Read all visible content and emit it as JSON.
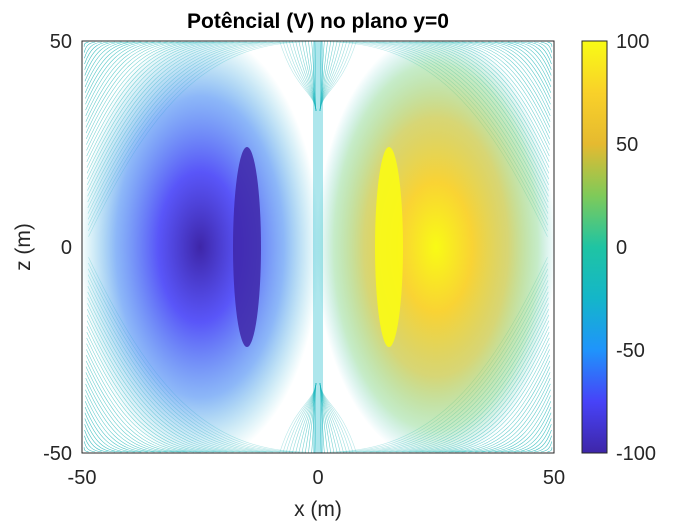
{
  "chart_data": {
    "type": "heatmap",
    "subtype": "filled-contour",
    "title": "Potêncial (V) no plano y=0",
    "xlabel": "x (m)",
    "ylabel": "z (m)",
    "xlim": [
      -50,
      50
    ],
    "ylim": [
      -50,
      50
    ],
    "x_ticks": [
      "-50",
      "0",
      "50"
    ],
    "y_ticks": [
      "-50",
      "0",
      "50"
    ],
    "colorbar": {
      "colormap": "parula",
      "range": [
        -100,
        100
      ],
      "ticks": [
        "-100",
        "-50",
        "0",
        "50",
        "100"
      ],
      "colors": [
        "#3e26a8",
        "#4743f8",
        "#1f94fb",
        "#14b6c9",
        "#1fc4a3",
        "#7fca59",
        "#e5ba30",
        "#f9d129",
        "#f9fb15"
      ]
    },
    "features": [
      {
        "name": "minimum",
        "x": -15,
        "z_range": [
          -25,
          25
        ],
        "value": -100
      },
      {
        "name": "maximum",
        "x": 15,
        "z_range": [
          -25,
          25
        ],
        "value": 100
      }
    ],
    "grid": false
  }
}
